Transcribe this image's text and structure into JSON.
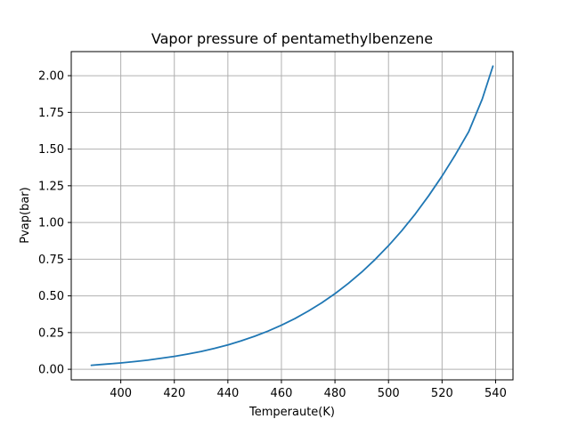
{
  "chart_data": {
    "type": "line",
    "title": "Vapor pressure of pentamethylbenzene",
    "xlabel": "Temperaute(K)",
    "ylabel": "Pvap(bar)",
    "xlim": [
      381.5,
      546.5
    ],
    "ylim": [
      -0.072,
      2.164
    ],
    "xticks": [
      400,
      420,
      440,
      460,
      480,
      500,
      520,
      540
    ],
    "xtick_labels": [
      "400",
      "420",
      "440",
      "460",
      "480",
      "500",
      "520",
      "540"
    ],
    "yticks": [
      0.0,
      0.25,
      0.5,
      0.75,
      1.0,
      1.25,
      1.5,
      1.75,
      2.0
    ],
    "ytick_labels": [
      "0.00",
      "0.25",
      "0.50",
      "0.75",
      "1.00",
      "1.25",
      "1.50",
      "1.75",
      "2.00"
    ],
    "grid": true,
    "series": [
      {
        "color": "#1f77b4",
        "x": [
          389,
          395,
          400,
          405,
          410,
          415,
          420,
          425,
          430,
          435,
          440,
          445,
          450,
          455,
          460,
          465,
          470,
          475,
          480,
          485,
          490,
          495,
          500,
          505,
          510,
          515,
          520,
          525,
          530,
          535,
          539
        ],
        "y": [
          0.027,
          0.036,
          0.043,
          0.052,
          0.062,
          0.075,
          0.088,
          0.104,
          0.121,
          0.142,
          0.166,
          0.194,
          0.225,
          0.26,
          0.3,
          0.345,
          0.396,
          0.452,
          0.515,
          0.585,
          0.662,
          0.748,
          0.842,
          0.945,
          1.058,
          1.182,
          1.316,
          1.462,
          1.62,
          1.84,
          2.065
        ]
      }
    ]
  }
}
